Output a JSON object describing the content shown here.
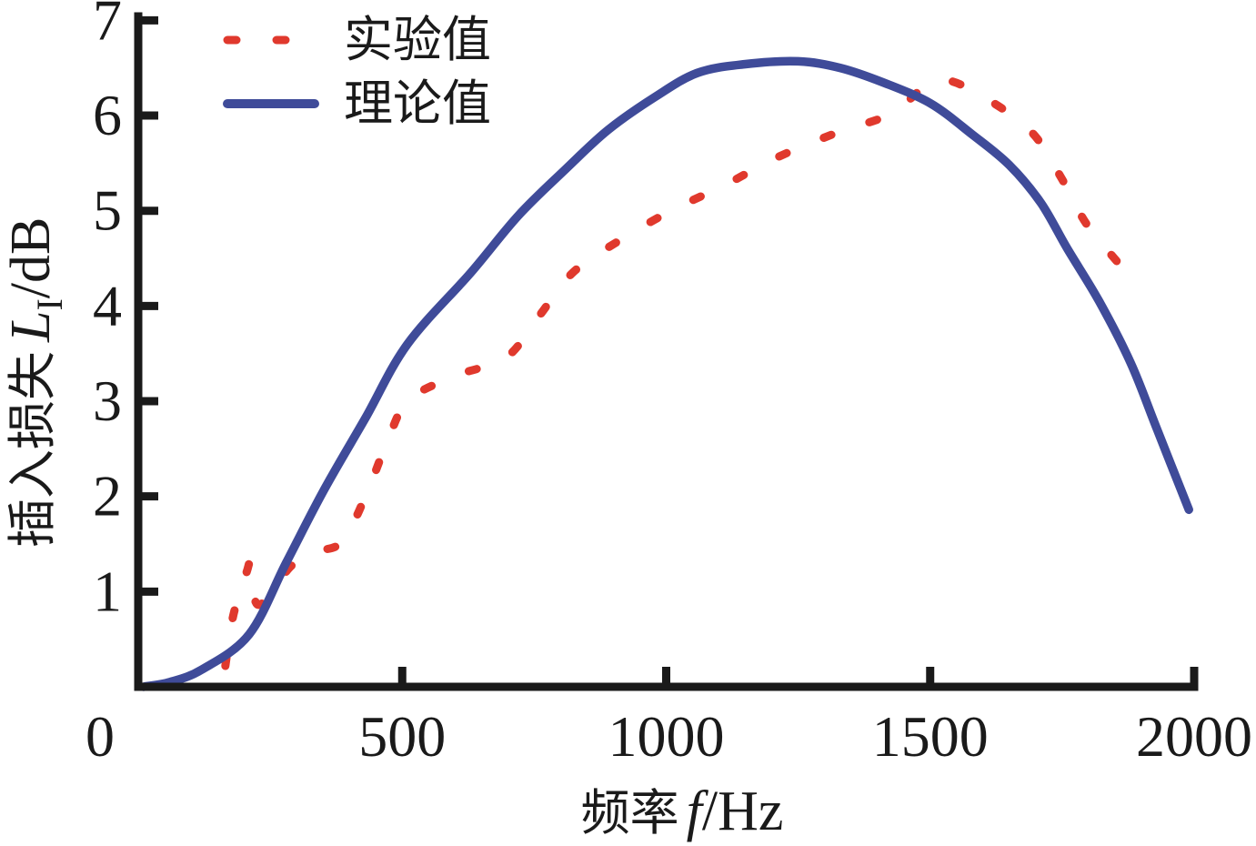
{
  "chart_data": {
    "type": "line",
    "title": "",
    "xlabel_cn": "频率",
    "xlabel_var": "f",
    "xlabel_unit": "/Hz",
    "ylabel_cn": "插入损失",
    "ylabel_var": "L",
    "ylabel_sub": "I",
    "ylabel_unit": "/dB",
    "xlim": [
      0,
      2000
    ],
    "ylim": [
      0,
      7
    ],
    "x_tick_values": [
      0,
      500,
      1000,
      1500,
      2000
    ],
    "x_tick_labels": [
      "0",
      "500",
      "1000",
      "1500",
      "2000"
    ],
    "y_tick_values": [
      1,
      2,
      3,
      4,
      5,
      6,
      7
    ],
    "y_tick_labels": [
      "1",
      "2",
      "3",
      "4",
      "5",
      "6",
      "7"
    ],
    "grid": false,
    "legend": {
      "position": "top-left",
      "items": [
        {
          "label": "实验值",
          "style": "dashed",
          "color": "#E0392D"
        },
        {
          "label": "理论值",
          "style": "solid",
          "color": "#3F4B99"
        }
      ]
    },
    "series": [
      {
        "name": "实验值",
        "style": "dashed",
        "color": "#E0392D",
        "points": [
          [
            165,
            0.22
          ],
          [
            180,
            0.75
          ],
          [
            205,
            1.2
          ],
          [
            213,
            1.27
          ],
          [
            228,
            0.86
          ],
          [
            290,
            1.27
          ],
          [
            340,
            1.42
          ],
          [
            387,
            1.53
          ],
          [
            432,
            2.02
          ],
          [
            470,
            2.55
          ],
          [
            512,
            3.01
          ],
          [
            603,
            3.27
          ],
          [
            697,
            3.46
          ],
          [
            760,
            3.9
          ],
          [
            823,
            4.35
          ],
          [
            909,
            4.68
          ],
          [
            1009,
            5.0
          ],
          [
            1111,
            5.27
          ],
          [
            1210,
            5.56
          ],
          [
            1328,
            5.83
          ],
          [
            1426,
            6.02
          ],
          [
            1515,
            6.37
          ],
          [
            1605,
            6.18
          ],
          [
            1693,
            5.82
          ],
          [
            1748,
            5.35
          ],
          [
            1795,
            4.87
          ],
          [
            1858,
            4.44
          ]
        ]
      },
      {
        "name": "理论值",
        "style": "solid",
        "color": "#3F4B99",
        "points": [
          [
            10,
            0.0
          ],
          [
            60,
            0.05
          ],
          [
            120,
            0.18
          ],
          [
            210,
            0.55
          ],
          [
            280,
            1.3
          ],
          [
            350,
            2.05
          ],
          [
            430,
            2.82
          ],
          [
            510,
            3.6
          ],
          [
            630,
            4.35
          ],
          [
            720,
            4.95
          ],
          [
            810,
            5.44
          ],
          [
            890,
            5.85
          ],
          [
            980,
            6.2
          ],
          [
            1060,
            6.45
          ],
          [
            1150,
            6.54
          ],
          [
            1250,
            6.57
          ],
          [
            1330,
            6.5
          ],
          [
            1410,
            6.35
          ],
          [
            1500,
            6.13
          ],
          [
            1580,
            5.8
          ],
          [
            1650,
            5.48
          ],
          [
            1710,
            5.08
          ],
          [
            1760,
            4.6
          ],
          [
            1820,
            4.05
          ],
          [
            1880,
            3.4
          ],
          [
            1930,
            2.7
          ],
          [
            1990,
            1.86
          ]
        ]
      }
    ],
    "colors": {
      "axis": "#1A1A1A",
      "experiment": "#E0392D",
      "theory": "#3F4B99",
      "background": "#FFFFFF"
    }
  }
}
